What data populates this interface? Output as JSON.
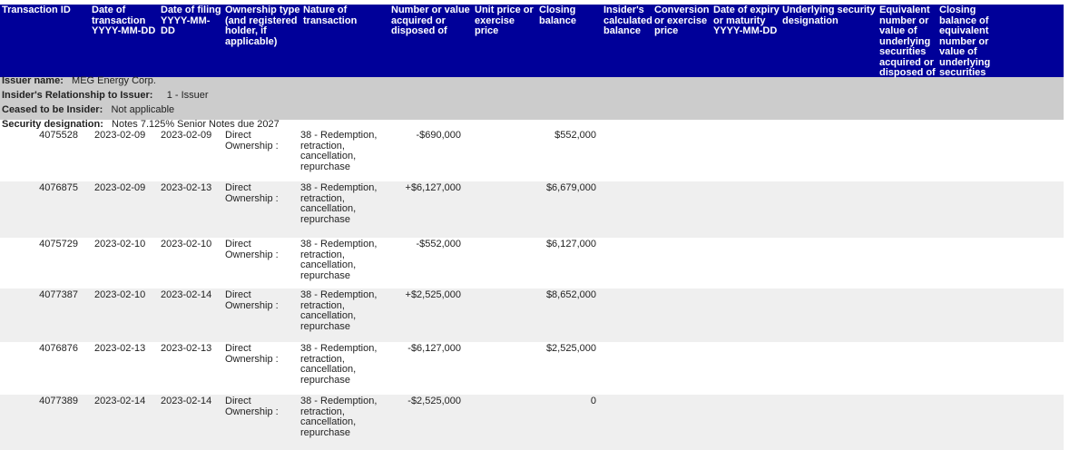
{
  "header": {
    "columns": [
      "Transaction ID",
      "Date of transaction YYYY-MM-DD",
      "Date of filing YYYY-MM-DD",
      "Ownership type (and registered holder, if applicable)",
      "Nature of transaction",
      "Number or value acquired or disposed of",
      "Unit price or exercise price",
      "Closing balance",
      "Insider's calculated balance",
      "Conversion or exercise price",
      "Date of expiry or maturity YYYY-MM-DD",
      "Underlying security designation",
      "Equivalent number or value of underlying securities acquired or disposed of",
      "Closing balance of equivalent number or value of underlying securities"
    ]
  },
  "issuer": {
    "name_label": "Issuer name:",
    "name": "MEG Energy Corp.",
    "relationship_label": "Insider's Relationship to Issuer:",
    "relationship": "1 - Issuer",
    "ceased_label": "Ceased to be Insider:",
    "ceased": "Not applicable",
    "security_label": "Security designation:",
    "security": "Notes 7.125% Senior Notes due 2027"
  },
  "table": {
    "rows": [
      [
        "4075528",
        "2023-02-09",
        "2023-02-09",
        "Direct Ownership :",
        "38 - Redemption, retraction, cancellation, repurchase",
        "-$690,000",
        "$552,000"
      ],
      [
        "4076875",
        "2023-02-09",
        "2023-02-13",
        "Direct Ownership :",
        "38 - Redemption, retraction, cancellation, repurchase",
        "+$6,127,000",
        "$6,679,000"
      ],
      [
        "4075729",
        "2023-02-10",
        "2023-02-10",
        "Direct Ownership :",
        "38 - Redemption, retraction, cancellation, repurchase",
        "-$552,000",
        "$6,127,000"
      ],
      [
        "4077387",
        "2023-02-10",
        "2023-02-14",
        "Direct Ownership :",
        "38 - Redemption, retraction, cancellation, repurchase",
        "+$2,525,000",
        "$8,652,000"
      ],
      [
        "4076876",
        "2023-02-13",
        "2023-02-13",
        "Direct Ownership :",
        "38 - Redemption, retraction, cancellation, repurchase",
        "-$6,127,000",
        "$2,525,000"
      ],
      [
        "4077389",
        "2023-02-14",
        "2023-02-14",
        "Direct Ownership :",
        "38 - Redemption, retraction, cancellation, repurchase",
        "-$2,525,000",
        "0"
      ]
    ]
  }
}
